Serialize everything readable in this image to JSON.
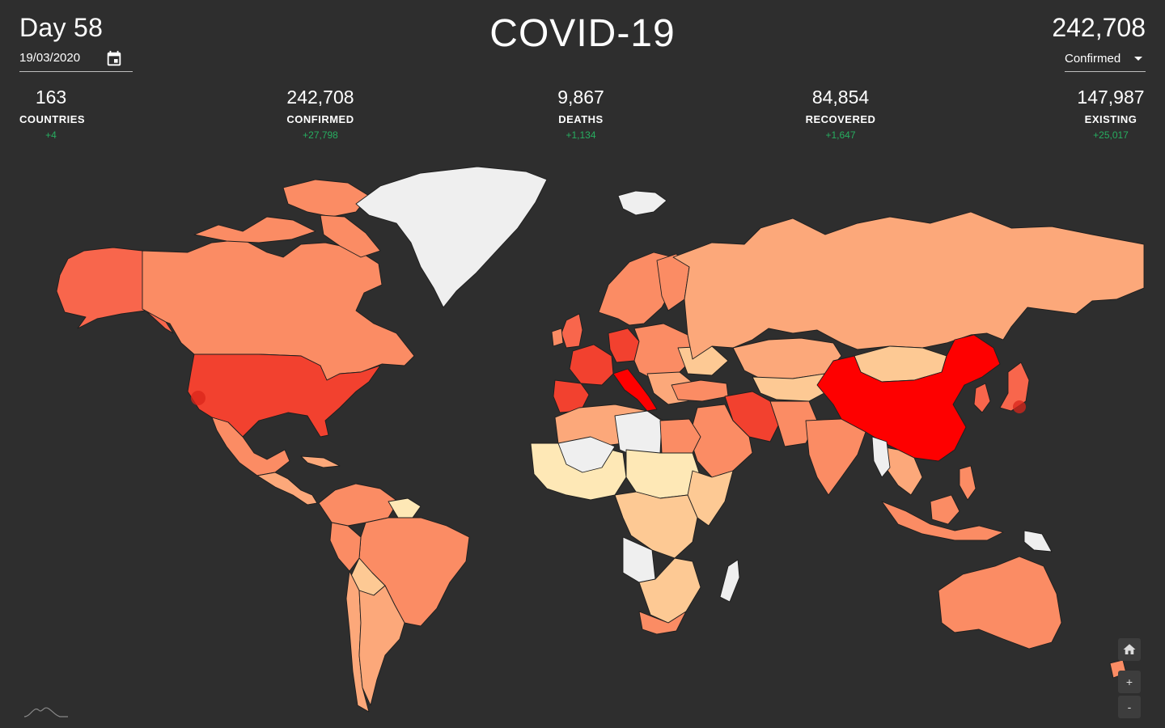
{
  "header": {
    "day_title": "Day 58",
    "date_value": "19/03/2020",
    "app_title": "COVID-19",
    "total_value": "242,708",
    "metric_selected": "Confirmed"
  },
  "stats": [
    {
      "id": "countries",
      "value": "163",
      "label": "COUNTRIES",
      "delta": "+4"
    },
    {
      "id": "confirmed",
      "value": "242,708",
      "label": "CONFIRMED",
      "delta": "+27,798"
    },
    {
      "id": "deaths",
      "value": "9,867",
      "label": "DEATHS",
      "delta": "+1,134"
    },
    {
      "id": "recovered",
      "value": "84,854",
      "label": "RECOVERED",
      "delta": "+1,647"
    },
    {
      "id": "existing",
      "value": "147,987",
      "label": "EXISTING",
      "delta": "+25,017"
    }
  ],
  "colors": {
    "background": "#2e2e2e",
    "delta_green": "#27ae60",
    "scale_none": "#efefef",
    "scale_1": "#fee8b6",
    "scale_2": "#fdc994",
    "scale_3": "#fca87a",
    "scale_4": "#fb8c64",
    "scale_5": "#f8664c",
    "scale_6": "#f2412f",
    "scale_max": "#fe0000"
  },
  "map_controls": {
    "home_icon": "home-icon",
    "zoom_in_label": "+",
    "zoom_out_label": "-"
  }
}
